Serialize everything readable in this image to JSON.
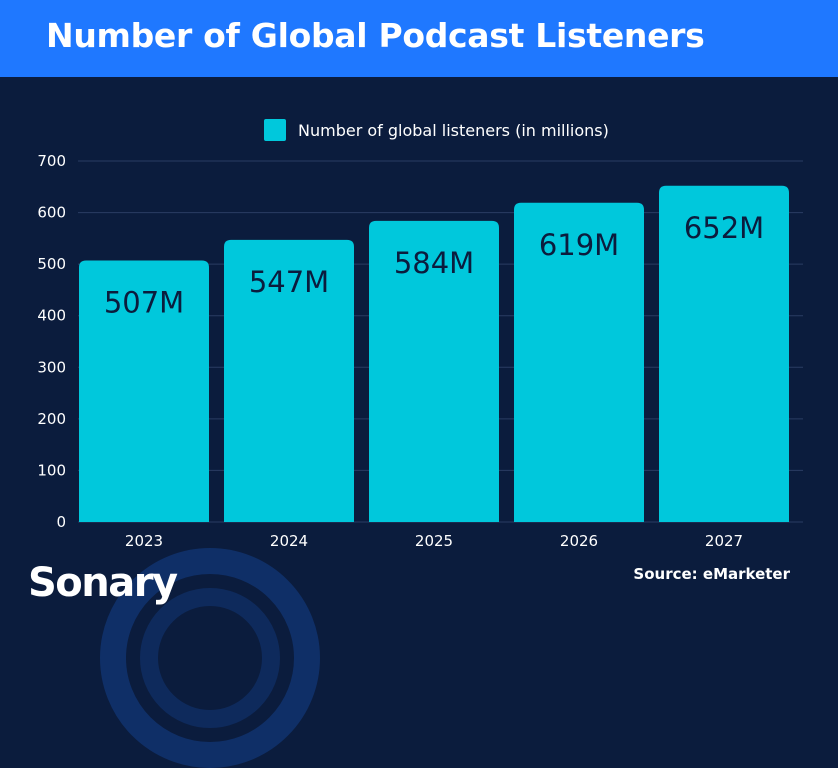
{
  "header": {
    "title": "Number of Global Podcast Listeners"
  },
  "chart_data": {
    "type": "bar",
    "title": "Number of Global Podcast Listeners",
    "categories": [
      "2023",
      "2024",
      "2025",
      "2026",
      "2027"
    ],
    "series": [
      {
        "name": "Number of global listeners (in millions)",
        "values": [
          507,
          547,
          584,
          619,
          652
        ],
        "data_labels": [
          "507M",
          "547M",
          "584M",
          "619M",
          "652M"
        ]
      }
    ],
    "ylim": [
      0,
      700
    ],
    "yticks": [
      0,
      100,
      200,
      300,
      400,
      500,
      600,
      700
    ],
    "ytick_labels": [
      "0",
      "100",
      "200",
      "300",
      "400",
      "500",
      "600",
      "700"
    ],
    "grid": true,
    "legend_position": "top-center",
    "xlabel": "",
    "ylabel": ""
  },
  "colors": {
    "background": "#0b1c3d",
    "header": "#1f78ff",
    "bar": "#00c8dc",
    "bar_label": "#0b1c3d",
    "grid": "#2a3d63",
    "text": "#ffffff"
  },
  "footer": {
    "logo": "Sonary",
    "source": "Source: eMarketer"
  }
}
